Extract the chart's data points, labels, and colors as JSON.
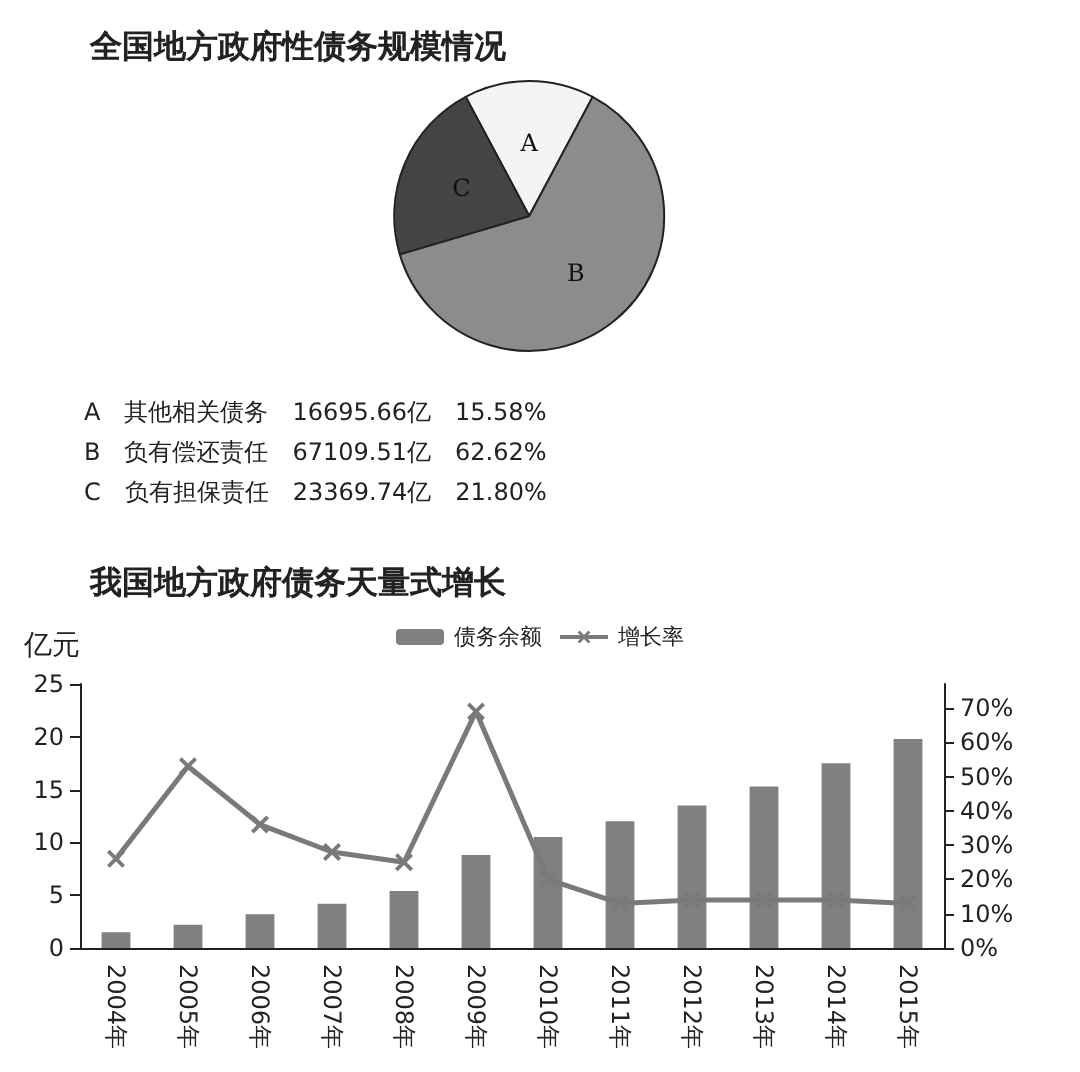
{
  "chart_data": [
    {
      "type": "pie",
      "title": "全国地方政府性债务规模情况",
      "categories": [
        "A",
        "B",
        "C"
      ],
      "values": [
        15.58,
        62.62,
        21.8
      ],
      "colors": [
        "#f4f4f4",
        "#8c8c8c",
        "#444444"
      ],
      "legend": false,
      "annotations": [
        "A　其他相关债务　16695.66亿　15.58%",
        "B　负有偿还责任　67109.51亿　62.62%",
        "C　负有担保责任　23369.74亿　21.80%"
      ]
    },
    {
      "type": "bar",
      "title": "我国地方政府债务天量式增长",
      "ylabel": "亿元",
      "categories": [
        "2004年",
        "2005年",
        "2006年",
        "2007年",
        "2008年",
        "2009年",
        "2010年",
        "2011年",
        "2012年",
        "2013年",
        "2014年",
        "2015年"
      ],
      "series": [
        {
          "name": "债务余额",
          "type": "bar",
          "color": "#808080",
          "values": [
            1.5,
            2.2,
            3.2,
            4.2,
            5.4,
            8.8,
            10.5,
            12.0,
            13.5,
            15.3,
            17.5,
            19.8
          ]
        },
        {
          "name": "增长率",
          "type": "line",
          "axis": "y2",
          "color": "#7a7a7a",
          "marker": "cross",
          "values": [
            26,
            53,
            36,
            28,
            25,
            69,
            20,
            13,
            14,
            14,
            14,
            13
          ]
        }
      ],
      "ylim": [
        0,
        25
      ],
      "yticks": [
        0,
        5,
        10,
        15,
        20,
        25
      ],
      "y2lim": [
        0,
        77
      ],
      "y2ticks": [
        {
          "value": 0,
          "label": "0%"
        },
        {
          "value": 10,
          "label": "10%"
        },
        {
          "value": 20,
          "label": "20%"
        },
        {
          "value": 30,
          "label": "30%"
        },
        {
          "value": 40,
          "label": "40%"
        },
        {
          "value": 50,
          "label": "50%"
        },
        {
          "value": 60,
          "label": "60%"
        },
        {
          "value": 70,
          "label": "70%"
        }
      ],
      "grid": false,
      "legend": "top"
    }
  ]
}
